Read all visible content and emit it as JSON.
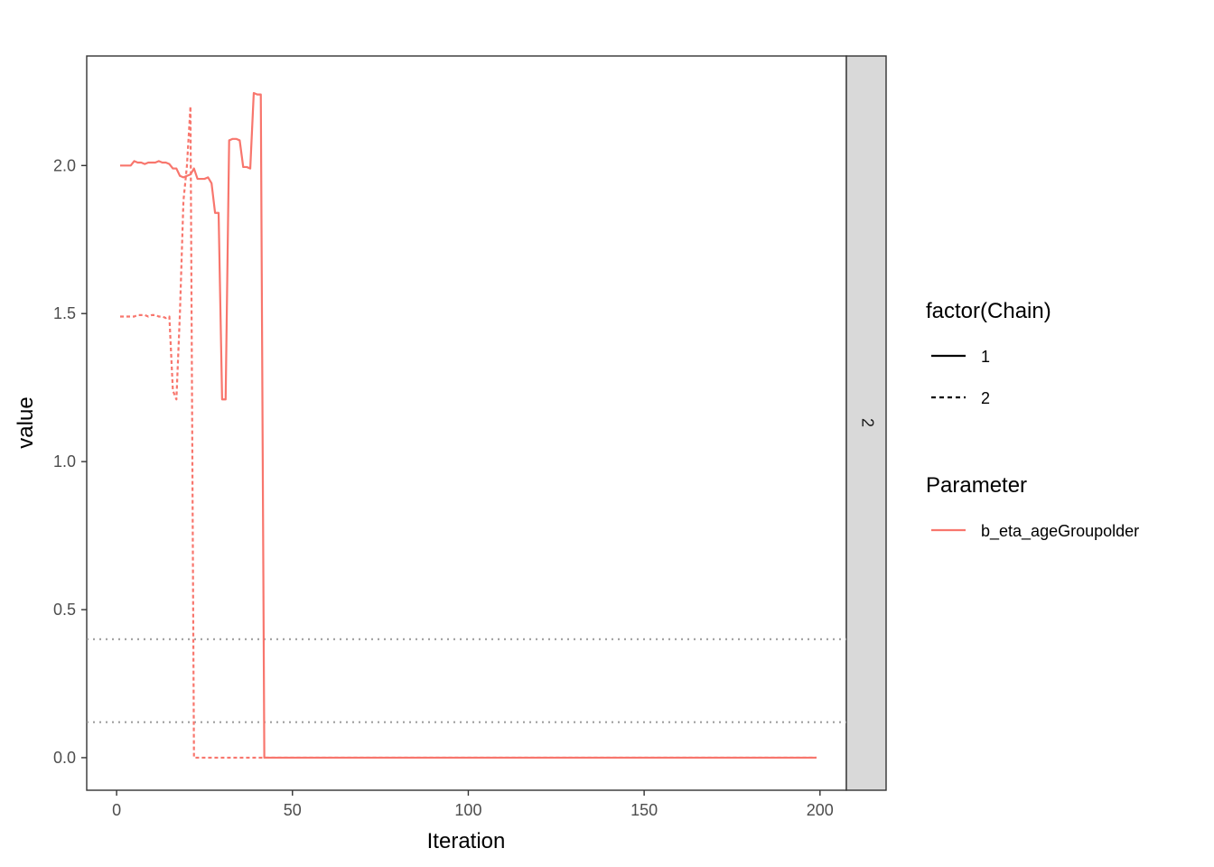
{
  "chart_data": {
    "type": "line",
    "xlabel": "Iteration",
    "ylabel": "value",
    "xlim": [
      -8.5,
      207.5
    ],
    "ylim": [
      -0.11,
      2.37
    ],
    "x_ticks": [
      0,
      50,
      100,
      150,
      200
    ],
    "y_ticks": [
      0.0,
      0.5,
      1.0,
      1.5,
      2.0
    ],
    "x_tick_labels": [
      "0",
      "50",
      "100",
      "150",
      "200"
    ],
    "y_tick_labels": [
      "0.0",
      "0.5",
      "1.0",
      "1.5",
      "2.0"
    ],
    "facet_strip": "2",
    "grid": false,
    "legend_position": "right",
    "reference_lines": [
      0.4,
      0.12
    ],
    "reference_line_color": "#999999",
    "series_color": "#F8766D",
    "legends": [
      {
        "title": "factor(Chain)",
        "entries": [
          {
            "label": "1",
            "linetype": "solid"
          },
          {
            "label": "2",
            "linetype": "dashed"
          }
        ]
      },
      {
        "title": "Parameter",
        "entries": [
          {
            "label": "b_eta_ageGroupolder",
            "color": "#F8766D"
          }
        ]
      }
    ],
    "series": [
      {
        "name": "b_eta_ageGroupolder",
        "chain": "1",
        "linetype": "solid",
        "points": [
          [
            1,
            2.0
          ],
          [
            2,
            2.0
          ],
          [
            3,
            2.0
          ],
          [
            4,
            2.0
          ],
          [
            5,
            2.015
          ],
          [
            6,
            2.01
          ],
          [
            7,
            2.01
          ],
          [
            8,
            2.005
          ],
          [
            9,
            2.01
          ],
          [
            10,
            2.01
          ],
          [
            11,
            2.01
          ],
          [
            12,
            2.015
          ],
          [
            13,
            2.01
          ],
          [
            14,
            2.01
          ],
          [
            15,
            2.005
          ],
          [
            16,
            1.99
          ],
          [
            17,
            1.99
          ],
          [
            18,
            1.965
          ],
          [
            19,
            1.96
          ],
          [
            20,
            1.965
          ],
          [
            21,
            1.97
          ],
          [
            22,
            1.99
          ],
          [
            23,
            1.955
          ],
          [
            24,
            1.955
          ],
          [
            25,
            1.955
          ],
          [
            26,
            1.96
          ],
          [
            27,
            1.94
          ],
          [
            28,
            1.84
          ],
          [
            29,
            1.84
          ],
          [
            30,
            1.21
          ],
          [
            31,
            1.21
          ],
          [
            32,
            2.085
          ],
          [
            33,
            2.09
          ],
          [
            34,
            2.09
          ],
          [
            35,
            2.085
          ],
          [
            36,
            1.995
          ],
          [
            37,
            1.995
          ],
          [
            38,
            1.99
          ],
          [
            39,
            2.245
          ],
          [
            40,
            2.24
          ],
          [
            41,
            2.24
          ],
          [
            42,
            0.0
          ],
          [
            43,
            0.0
          ],
          [
            199,
            0.0
          ]
        ]
      },
      {
        "name": "b_eta_ageGroupolder",
        "chain": "2",
        "linetype": "dashed",
        "points": [
          [
            1,
            1.49
          ],
          [
            2,
            1.49
          ],
          [
            3,
            1.49
          ],
          [
            4,
            1.49
          ],
          [
            5,
            1.49
          ],
          [
            6,
            1.495
          ],
          [
            7,
            1.495
          ],
          [
            8,
            1.495
          ],
          [
            9,
            1.49
          ],
          [
            10,
            1.495
          ],
          [
            11,
            1.495
          ],
          [
            12,
            1.49
          ],
          [
            13,
            1.49
          ],
          [
            14,
            1.485
          ],
          [
            15,
            1.49
          ],
          [
            16,
            1.24
          ],
          [
            17,
            1.21
          ],
          [
            18,
            1.5
          ],
          [
            19,
            1.88
          ],
          [
            20,
            2.0
          ],
          [
            21,
            2.2
          ],
          [
            22,
            0.0
          ],
          [
            23,
            0.0
          ],
          [
            199,
            0.0
          ]
        ]
      }
    ]
  }
}
